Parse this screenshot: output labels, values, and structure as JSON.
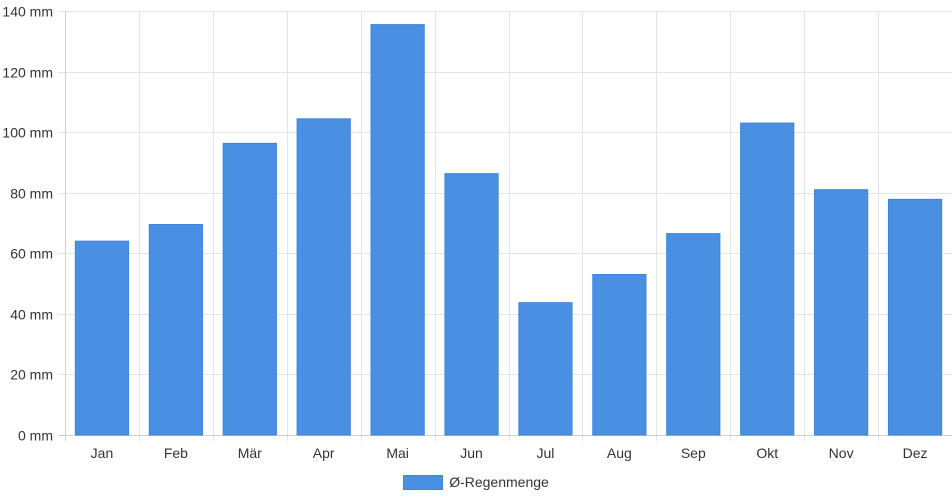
{
  "chart_data": {
    "type": "bar",
    "title": "",
    "xlabel": "",
    "ylabel": "",
    "categories": [
      "Jan",
      "Feb",
      "Mär",
      "Apr",
      "Mai",
      "Jun",
      "Jul",
      "Aug",
      "Sep",
      "Okt",
      "Nov",
      "Dez"
    ],
    "series": [
      {
        "name": "Ø-Regenmenge",
        "values": [
          64,
          69.5,
          96.3,
          104.4,
          135.5,
          86.3,
          43.7,
          53,
          66.5,
          103,
          81,
          77.8
        ],
        "color": "#4a90e2"
      }
    ],
    "ylim": [
      0,
      140
    ],
    "yticks": [
      0,
      20,
      40,
      60,
      80,
      100,
      120,
      140
    ],
    "ytick_labels": [
      "0 mm",
      "20 mm",
      "40 mm",
      "60 mm",
      "80 mm",
      "100 mm",
      "120 mm",
      "140 mm"
    ],
    "grid": true,
    "legend_position": "bottom-center"
  }
}
